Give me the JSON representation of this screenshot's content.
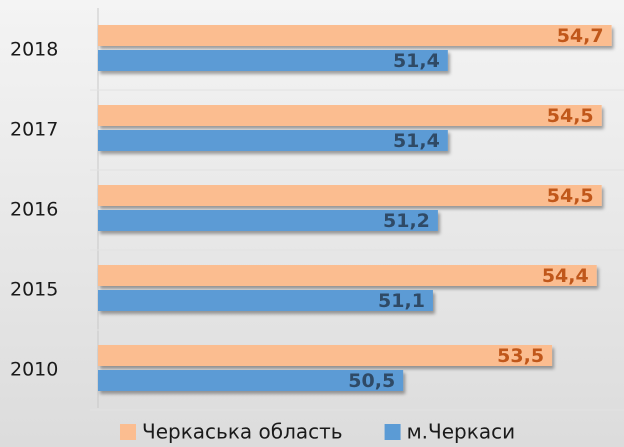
{
  "chart_data": {
    "type": "barh",
    "categories": [
      "2018",
      "2017",
      "2016",
      "2015",
      "2010"
    ],
    "series": [
      {
        "name": "Черкаська область",
        "color": "#fbbd90",
        "label_color": "#c0571a",
        "values": [
          54.7,
          54.5,
          54.5,
          54.4,
          53.5
        ],
        "value_labels": [
          "54,7",
          "54,5",
          "54,5",
          "54,4",
          "53,5"
        ]
      },
      {
        "name": "м.Черкаси",
        "color": "#5b9bd5",
        "label_color": "#2f4a66",
        "values": [
          51.4,
          51.4,
          51.2,
          51.1,
          50.5
        ],
        "value_labels": [
          "51,4",
          "51,4",
          "51,2",
          "51,1",
          "50,5"
        ]
      }
    ],
    "xlim": [
      44.35,
      54.95
    ],
    "legend": "bottom"
  }
}
